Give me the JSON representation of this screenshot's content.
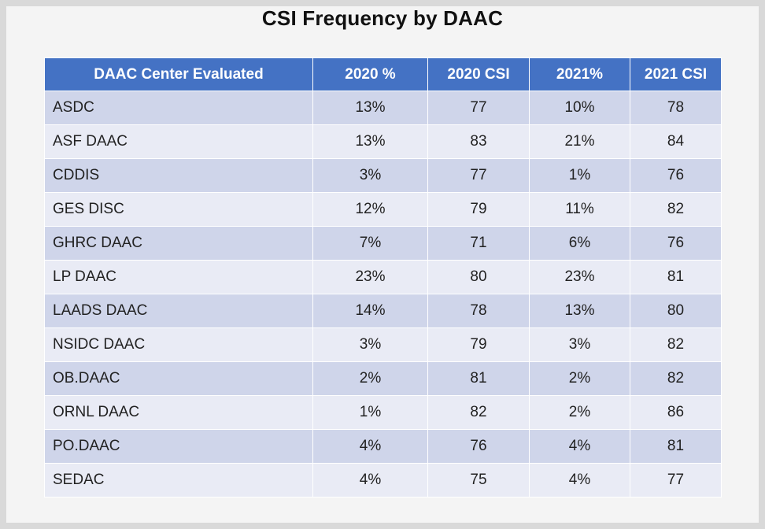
{
  "title": "CSI Frequency by DAAC",
  "table": {
    "headers": [
      "DAAC Center Evaluated",
      "2020 %",
      "2020 CSI",
      "2021%",
      "2021 CSI"
    ],
    "rows": [
      [
        "ASDC",
        "13%",
        "77",
        "10%",
        "78"
      ],
      [
        "ASF DAAC",
        "13%",
        "83",
        "21%",
        "84"
      ],
      [
        "CDDIS",
        "3%",
        "77",
        "1%",
        "76"
      ],
      [
        "GES DISC",
        "12%",
        "79",
        "11%",
        "82"
      ],
      [
        "GHRC DAAC",
        "7%",
        "71",
        "6%",
        "76"
      ],
      [
        "LP DAAC",
        "23%",
        "80",
        "23%",
        "81"
      ],
      [
        "LAADS DAAC",
        "14%",
        "78",
        "13%",
        "80"
      ],
      [
        "NSIDC DAAC",
        "3%",
        "79",
        "3%",
        "82"
      ],
      [
        "OB.DAAC",
        "2%",
        "81",
        "2%",
        "82"
      ],
      [
        "ORNL DAAC",
        "1%",
        "82",
        "2%",
        "86"
      ],
      [
        "PO.DAAC",
        "4%",
        "76",
        "4%",
        "81"
      ],
      [
        "SEDAC",
        "4%",
        "75",
        "4%",
        "77"
      ]
    ]
  },
  "colors": {
    "header_bg": "#4472c4",
    "row_dark": "#cfd5ea",
    "row_light": "#e9ebf5",
    "page_bg": "#f4f4f4"
  }
}
